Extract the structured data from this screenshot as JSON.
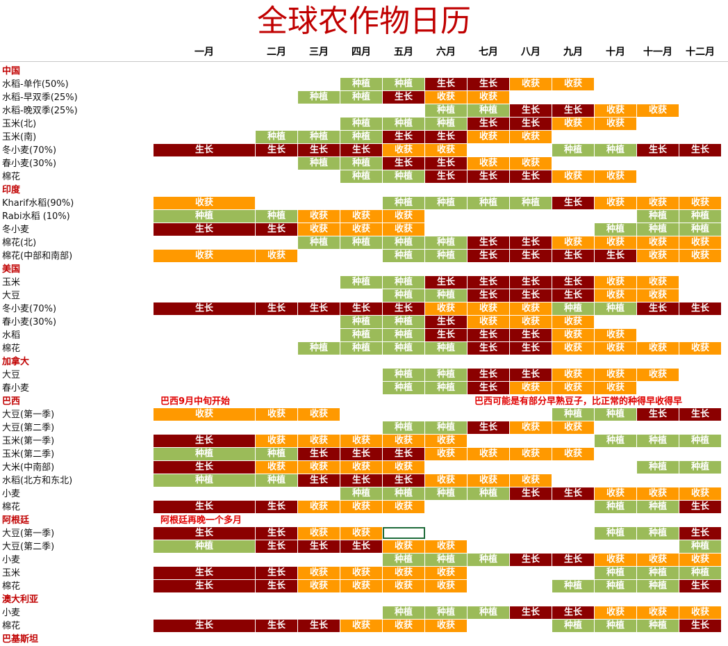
{
  "title": "全球农作物日历",
  "months": [
    "一月",
    "二月",
    "三月",
    "四月",
    "五月",
    "六月",
    "七月",
    "八月",
    "九月",
    "十月",
    "十一月",
    "十二月"
  ],
  "legend_colors": {
    "种植": "#9bbb59",
    "生长": "#8b0000",
    "收获": "#ff9900"
  },
  "rows": [
    {
      "type": "country",
      "label": "中国"
    },
    {
      "type": "crop",
      "label": "水稻-单作(50%)",
      "cells": [
        "",
        "",
        "",
        "种植",
        "种植",
        "生长",
        "生长",
        "收获",
        "收获",
        "",
        "",
        ""
      ]
    },
    {
      "type": "crop",
      "label": "水稻-早双季(25%)",
      "cells": [
        "",
        "",
        "种植",
        "种植",
        "生长",
        "收获",
        "收获",
        "",
        "",
        "",
        "",
        ""
      ]
    },
    {
      "type": "crop",
      "label": "水稻-晚双季(25%)",
      "cells": [
        "",
        "",
        "",
        "",
        "",
        "种植",
        "种植",
        "生长",
        "生长",
        "收获",
        "收获",
        ""
      ]
    },
    {
      "type": "crop",
      "label": "玉米(北)",
      "cells": [
        "",
        "",
        "",
        "种植",
        "种植",
        "种植",
        "生长",
        "生长",
        "收获",
        "收获",
        "",
        ""
      ]
    },
    {
      "type": "crop",
      "label": "玉米(南)",
      "cells": [
        "",
        "种植",
        "种植",
        "种植",
        "生长",
        "生长",
        "收获",
        "收获",
        "",
        "",
        "",
        ""
      ]
    },
    {
      "type": "crop",
      "label": "冬小麦(70%)",
      "cells": [
        "生长",
        "生长",
        "生长",
        "生长",
        "收获",
        "收获",
        "",
        "",
        "种植",
        "种植",
        "生长",
        "生长"
      ]
    },
    {
      "type": "crop",
      "label": "春小麦(30%)",
      "cells": [
        "",
        "",
        "种植",
        "种植",
        "生长",
        "生长",
        "收获",
        "收获",
        "",
        "",
        "",
        ""
      ]
    },
    {
      "type": "crop",
      "label": "棉花",
      "cells": [
        "",
        "",
        "",
        "种植",
        "种植",
        "生长",
        "生长",
        "生长",
        "收获",
        "收获",
        "",
        ""
      ]
    },
    {
      "type": "country",
      "label": "印度"
    },
    {
      "type": "crop",
      "label": "Kharif水稻(90%)",
      "cells": [
        "收获",
        "",
        "",
        "",
        "种植",
        "种植",
        "种植",
        "种植",
        "生长",
        "收获",
        "收获",
        "收获"
      ]
    },
    {
      "type": "crop",
      "label": "Rabi水稻 (10%)",
      "cells": [
        "种植",
        "种植",
        "收获",
        "收获",
        "收获",
        "",
        "",
        "",
        "",
        "",
        "种植",
        "种植"
      ]
    },
    {
      "type": "crop",
      "label": "冬小麦",
      "cells": [
        "生长",
        "生长",
        "收获",
        "收获",
        "收获",
        "",
        "",
        "",
        "",
        "种植",
        "种植",
        "种植"
      ]
    },
    {
      "type": "crop",
      "label": "棉花(北)",
      "cells": [
        "",
        "",
        "种植",
        "种植",
        "种植",
        "种植",
        "生长",
        "生长",
        "收获",
        "收获",
        "收获",
        "收获"
      ]
    },
    {
      "type": "crop",
      "label": "棉花(中部和南部)",
      "cells": [
        "收获",
        "收获",
        "",
        "",
        "种植",
        "种植",
        "生长",
        "生长",
        "生长",
        "生长",
        "收获",
        "收获"
      ]
    },
    {
      "type": "country",
      "label": "美国"
    },
    {
      "type": "crop",
      "label": "玉米",
      "cells": [
        "",
        "",
        "",
        "种植",
        "种植",
        "生长",
        "生长",
        "生长",
        "生长",
        "收获",
        "收获",
        ""
      ]
    },
    {
      "type": "crop",
      "label": "大豆",
      "cells": [
        "",
        "",
        "",
        "",
        "种植",
        "种植",
        "生长",
        "生长",
        "生长",
        "收获",
        "收获",
        ""
      ]
    },
    {
      "type": "crop",
      "label": "冬小麦(70%)",
      "cells": [
        "生长",
        "生长",
        "生长",
        "生长",
        "生长",
        "收获",
        "收获",
        "收获",
        "种植",
        "种植",
        "生长",
        "生长"
      ]
    },
    {
      "type": "crop",
      "label": "春小麦(30%)",
      "cells": [
        "",
        "",
        "",
        "种植",
        "种植",
        "生长",
        "收获",
        "收获",
        "收获",
        "",
        "",
        ""
      ]
    },
    {
      "type": "crop",
      "label": "水稻",
      "cells": [
        "",
        "",
        "",
        "种植",
        "种植",
        "生长",
        "生长",
        "生长",
        "收获",
        "收获",
        "",
        ""
      ]
    },
    {
      "type": "crop",
      "label": "棉花",
      "cells": [
        "",
        "",
        "种植",
        "种植",
        "种植",
        "种植",
        "生长",
        "生长",
        "收获",
        "收获",
        "收获",
        "收获"
      ]
    },
    {
      "type": "country",
      "label": "加拿大"
    },
    {
      "type": "crop",
      "label": "大豆",
      "cells": [
        "",
        "",
        "",
        "",
        "种植",
        "种植",
        "生长",
        "生长",
        "收获",
        "收获",
        "收获",
        ""
      ]
    },
    {
      "type": "crop",
      "label": "春小麦",
      "cells": [
        "",
        "",
        "",
        "",
        "种植",
        "种植",
        "生长",
        "收获",
        "收获",
        "收获",
        "",
        ""
      ]
    },
    {
      "type": "country",
      "label": "巴西",
      "notes": [
        {
          "col": 0,
          "text": "巴西9月中旬开始"
        },
        {
          "col": 6,
          "text": "巴西可能是有部分早熟豆子，比正常的种得早收得早"
        }
      ]
    },
    {
      "type": "crop",
      "label": "大豆(第一季)",
      "cells": [
        "收获",
        "收获",
        "收获",
        "",
        "",
        "",
        "",
        "",
        "种植",
        "种植",
        "生长",
        "生长"
      ]
    },
    {
      "type": "crop",
      "label": "大豆(第二季)",
      "cells": [
        "",
        "",
        "",
        "",
        "种植",
        "种植",
        "生长",
        "收获",
        "收获",
        "",
        "",
        ""
      ]
    },
    {
      "type": "crop",
      "label": "玉米(第一季)",
      "cells": [
        "生长",
        "收获",
        "收获",
        "收获",
        "收获",
        "收获",
        "",
        "",
        "",
        "种植",
        "种植",
        "种植"
      ]
    },
    {
      "type": "crop",
      "label": "玉米(第二季)",
      "cells": [
        "种植",
        "种植",
        "生长",
        "生长",
        "生长",
        "收获",
        "收获",
        "收获",
        "收获",
        "",
        "",
        ""
      ]
    },
    {
      "type": "crop",
      "label": "大米(中南部)",
      "cells": [
        "生长",
        "收获",
        "收获",
        "收获",
        "收获",
        "",
        "",
        "",
        "",
        "",
        "种植",
        "种植"
      ]
    },
    {
      "type": "crop",
      "label": "水稻(北方和东北)",
      "cells": [
        "种植",
        "种植",
        "生长",
        "生长",
        "生长",
        "收获",
        "收获",
        "收获",
        "",
        "",
        "",
        ""
      ]
    },
    {
      "type": "crop",
      "label": "小麦",
      "cells": [
        "",
        "",
        "",
        "种植",
        "种植",
        "种植",
        "种植",
        "生长",
        "生长",
        "收获",
        "收获",
        "收获"
      ]
    },
    {
      "type": "crop",
      "label": "棉花",
      "cells": [
        "生长",
        "生长",
        "收获",
        "收获",
        "收获",
        "",
        "",
        "",
        "",
        "种植",
        "种植",
        "生长"
      ]
    },
    {
      "type": "country",
      "label": "阿根廷",
      "notes": [
        {
          "col": 0,
          "text": "阿根廷再晚一个多月"
        }
      ]
    },
    {
      "type": "crop",
      "label": "大豆(第一季)",
      "cells": [
        "生长",
        "生长",
        "收获",
        "收获",
        "",
        "",
        "",
        "",
        "",
        "种植",
        "种植",
        "生长"
      ],
      "selected_col": 4
    },
    {
      "type": "crop",
      "label": "大豆(第二季)",
      "cells": [
        "种植",
        "生长",
        "生长",
        "生长",
        "收获",
        "收获",
        "",
        "",
        "",
        "",
        "",
        "种植"
      ]
    },
    {
      "type": "crop",
      "label": "小麦",
      "cells": [
        "",
        "",
        "",
        "",
        "种植",
        "种植",
        "种植",
        "生长",
        "生长",
        "收获",
        "收获",
        "收获"
      ]
    },
    {
      "type": "crop",
      "label": "玉米",
      "cells": [
        "生长",
        "生长",
        "收获",
        "收获",
        "收获",
        "收获",
        "",
        "",
        "",
        "种植",
        "种植",
        "种植"
      ]
    },
    {
      "type": "crop",
      "label": "棉花",
      "cells": [
        "生长",
        "生长",
        "收获",
        "收获",
        "收获",
        "收获",
        "",
        "",
        "种植",
        "种植",
        "种植",
        "生长"
      ]
    },
    {
      "type": "country",
      "label": "澳大利亚"
    },
    {
      "type": "crop",
      "label": "小麦",
      "cells": [
        "",
        "",
        "",
        "",
        "种植",
        "种植",
        "种植",
        "生长",
        "生长",
        "收获",
        "收获",
        "收获"
      ]
    },
    {
      "type": "crop",
      "label": "棉花",
      "cells": [
        "生长",
        "生长",
        "生长",
        "收获",
        "收获",
        "收获",
        "",
        "",
        "种植",
        "种植",
        "种植",
        "生长"
      ]
    },
    {
      "type": "country",
      "label": "巴基斯坦"
    }
  ]
}
